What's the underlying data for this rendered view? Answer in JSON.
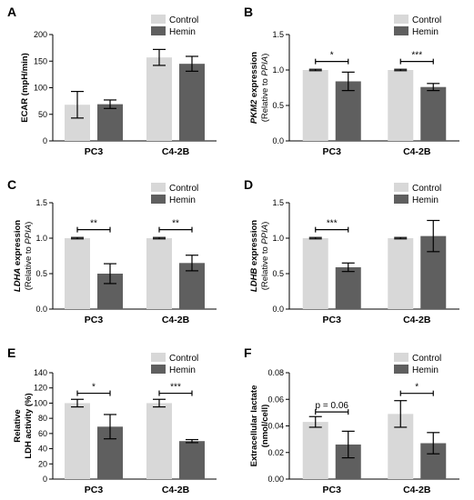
{
  "colors": {
    "control": "#d8d8d8",
    "hemin": "#5f5f5f"
  },
  "chart_data": [
    {
      "type": "bar",
      "panel": "A",
      "categories": [
        "PC3",
        "C4-2B"
      ],
      "series": [
        {
          "name": "Control",
          "values": [
            68,
            157
          ],
          "errors": [
            25,
            15
          ]
        },
        {
          "name": "Hemin",
          "values": [
            69,
            145
          ],
          "errors": [
            8,
            14
          ]
        }
      ],
      "ylabel_lines": [
        "ECAR (mpH/min)"
      ],
      "ylim": [
        0,
        200
      ],
      "yticks": [
        "0",
        "50",
        "100",
        "150",
        "200"
      ],
      "legend": "top-right",
      "significance": []
    },
    {
      "type": "bar",
      "panel": "B",
      "categories": [
        "PC3",
        "C4-2B"
      ],
      "series": [
        {
          "name": "Control",
          "values": [
            1.0,
            1.0
          ],
          "errors": [
            0.01,
            0.01
          ]
        },
        {
          "name": "Hemin",
          "values": [
            0.84,
            0.76
          ],
          "errors": [
            0.13,
            0.05
          ]
        }
      ],
      "ylabel_lines": [
        "PKM2 expression",
        "(Relative to PPIA)"
      ],
      "ylim": [
        0,
        1.5
      ],
      "yticks": [
        "0.0",
        "0.5",
        "1.0",
        "1.5"
      ],
      "legend": "top-right",
      "significance": [
        {
          "category": "PC3",
          "label": "*",
          "y": 1.12
        },
        {
          "category": "C4-2B",
          "label": "***",
          "y": 1.12
        }
      ]
    },
    {
      "type": "bar",
      "panel": "C",
      "categories": [
        "PC3",
        "C4-2B"
      ],
      "series": [
        {
          "name": "Control",
          "values": [
            1.0,
            1.0
          ],
          "errors": [
            0.01,
            0.01
          ]
        },
        {
          "name": "Hemin",
          "values": [
            0.5,
            0.65
          ],
          "errors": [
            0.14,
            0.11
          ]
        }
      ],
      "ylabel_lines": [
        "LDHA expression",
        "(Relative to PPIA)"
      ],
      "ylim": [
        0,
        1.5
      ],
      "yticks": [
        "0.0",
        "0.5",
        "1.0",
        "1.5"
      ],
      "legend": "top-right",
      "significance": [
        {
          "category": "PC3",
          "label": "**",
          "y": 1.12
        },
        {
          "category": "C4-2B",
          "label": "**",
          "y": 1.12
        }
      ]
    },
    {
      "type": "bar",
      "panel": "D",
      "categories": [
        "PC3",
        "C4-2B"
      ],
      "series": [
        {
          "name": "Control",
          "values": [
            1.0,
            1.0
          ],
          "errors": [
            0.01,
            0.01
          ]
        },
        {
          "name": "Hemin",
          "values": [
            0.59,
            1.03
          ],
          "errors": [
            0.06,
            0.22
          ]
        }
      ],
      "ylabel_lines": [
        "LDHB expression",
        "(Relative to PPIA)"
      ],
      "ylim": [
        0,
        1.5
      ],
      "yticks": [
        "0.0",
        "0.5",
        "1.0",
        "1.5"
      ],
      "legend": "top-right",
      "significance": [
        {
          "category": "PC3",
          "label": "***",
          "y": 1.12
        }
      ]
    },
    {
      "type": "bar",
      "panel": "E",
      "categories": [
        "PC3",
        "C4-2B"
      ],
      "series": [
        {
          "name": "Control",
          "values": [
            100,
            100
          ],
          "errors": [
            5,
            5
          ]
        },
        {
          "name": "Hemin",
          "values": [
            69,
            50
          ],
          "errors": [
            16,
            2
          ]
        }
      ],
      "ylabel_lines": [
        "Relative",
        "LDH activity (%)"
      ],
      "ylim": [
        0,
        140
      ],
      "yticks": [
        "0",
        "20",
        "40",
        "60",
        "80",
        "100",
        "120",
        "140"
      ],
      "legend": "top-right",
      "significance": [
        {
          "category": "PC3",
          "label": "*",
          "y": 113
        },
        {
          "category": "C4-2B",
          "label": "***",
          "y": 113
        }
      ]
    },
    {
      "type": "bar",
      "panel": "F",
      "categories": [
        "PC3",
        "C4-2B"
      ],
      "series": [
        {
          "name": "Control",
          "values": [
            0.043,
            0.049
          ],
          "errors": [
            0.004,
            0.01
          ]
        },
        {
          "name": "Hemin",
          "values": [
            0.026,
            0.027
          ],
          "errors": [
            0.01,
            0.008
          ]
        }
      ],
      "ylabel_lines": [
        "Extracellular lactate",
        "(nmol/cell)"
      ],
      "ylim": [
        0,
        0.08
      ],
      "yticks": [
        "0.00",
        "0.02",
        "0.04",
        "0.06",
        "0.08"
      ],
      "legend": "top-right",
      "significance": [
        {
          "category": "PC3",
          "label": "p = 0.06",
          "y": 0.0505
        },
        {
          "category": "C4-2B",
          "label": "*",
          "y": 0.0645
        }
      ]
    }
  ]
}
